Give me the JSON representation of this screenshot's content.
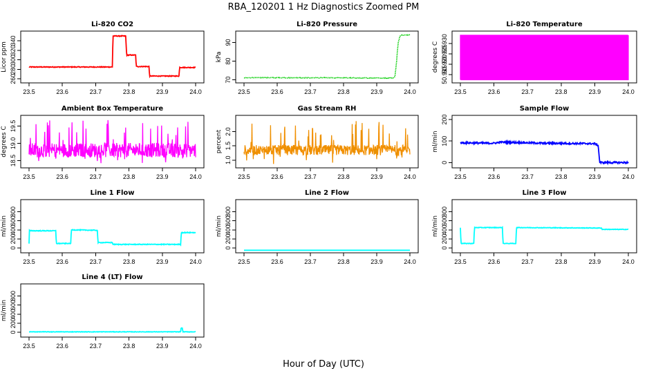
{
  "figure": {
    "title": "RBA_120201  1 Hz Diagnostics Zoomed PM",
    "xlabel": "Hour of Day (UTC)"
  },
  "chart_data": [
    {
      "id": "co2",
      "type": "line",
      "title": "Li-820 CO2",
      "ylabel": "Licor ppm",
      "xlim": [
        23.5,
        24.0
      ],
      "ylim": [
        256,
        356
      ],
      "xticks": [
        23.5,
        23.6,
        23.7,
        23.8,
        23.9,
        24.0
      ],
      "xtick_labels": [
        "23.5",
        "23.6",
        "23.7",
        "23.8",
        "23.9",
        "24.0"
      ],
      "yticks": [
        260,
        280,
        300,
        320,
        340
      ],
      "ytick_labels": [
        "260",
        "280",
        "300",
        "320",
        "340"
      ],
      "color": "#ff0000",
      "style": "step",
      "series": [
        {
          "name": "CO2",
          "x": [
            23.5,
            23.75,
            23.752,
            23.79,
            23.793,
            23.82,
            23.822,
            23.86,
            23.862,
            23.95,
            23.952,
            24.0
          ],
          "y": [
            285,
            285,
            350,
            350,
            310,
            310,
            286,
            286,
            266,
            266,
            284,
            284
          ]
        }
      ],
      "noise": 0.8
    },
    {
      "id": "pressure",
      "type": "line",
      "title": "Li-820 Pressure",
      "ylabel": "kPa",
      "xlim": [
        23.5,
        24.0
      ],
      "ylim": [
        69.5,
        95
      ],
      "xticks": [
        23.5,
        23.6,
        23.7,
        23.8,
        23.9,
        24.0
      ],
      "xtick_labels": [
        "23.5",
        "23.6",
        "23.7",
        "23.8",
        "23.9",
        "24.0"
      ],
      "yticks": [
        70,
        80,
        90
      ],
      "ytick_labels": [
        "70",
        "80",
        "90"
      ],
      "color": "#00cc00",
      "style": "points",
      "series": [
        {
          "name": "Pressure",
          "x": [
            23.5,
            23.95,
            23.955,
            23.96,
            23.962,
            23.965,
            23.97,
            23.975,
            24.0
          ],
          "y": [
            71.2,
            71.0,
            72,
            80,
            85,
            90,
            93.5,
            94,
            94
          ]
        }
      ],
      "noise": 0.15
    },
    {
      "id": "licor_temp",
      "type": "line",
      "title": "Li-820 Temperature",
      "ylabel": "degrees C",
      "xlim": [
        23.5,
        24.0
      ],
      "ylim": [
        50.912,
        50.935
      ],
      "xticks": [
        23.5,
        23.6,
        23.7,
        23.8,
        23.9,
        24.0
      ],
      "xtick_labels": [
        "23.5",
        "23.6",
        "23.7",
        "23.8",
        "23.9",
        "24.0"
      ],
      "yticks": [
        50.915,
        50.92,
        50.925,
        50.93
      ],
      "ytick_labels": [
        "50.915",
        "50.920",
        "50.925",
        "50.930"
      ],
      "color": "#ff00ff",
      "style": "switching",
      "series": [
        {
          "name": "Temperature",
          "levels": [
            50.9125,
            50.934
          ]
        }
      ]
    },
    {
      "id": "box_temp",
      "type": "line",
      "title": "Ambient Box Temperature",
      "ylabel": "degrees C",
      "xlim": [
        23.5,
        24.0
      ],
      "ylim": [
        18.35,
        19.75
      ],
      "xticks": [
        23.5,
        23.6,
        23.7,
        23.8,
        23.9,
        24.0
      ],
      "xtick_labels": [
        "23.5",
        "23.6",
        "23.7",
        "23.8",
        "23.9",
        "24.0"
      ],
      "yticks": [
        18.5,
        19.0,
        19.5
      ],
      "ytick_labels": [
        "18.5",
        "19.0",
        "19.5"
      ],
      "color": "#ff00ff",
      "style": "noisy",
      "series": [
        {
          "name": "Box Temp",
          "mean": 18.8,
          "spread": 0.35,
          "spike_max": 19.7,
          "spike_min": 18.4
        }
      ]
    },
    {
      "id": "gas_rh",
      "type": "line",
      "title": "Gas Stream RH",
      "ylabel": "percent",
      "xlim": [
        23.5,
        24.0
      ],
      "ylim": [
        0.8,
        2.5
      ],
      "xticks": [
        23.5,
        23.6,
        23.7,
        23.8,
        23.9,
        24.0
      ],
      "xtick_labels": [
        "23.5",
        "23.6",
        "23.7",
        "23.8",
        "23.9",
        "24.0"
      ],
      "yticks": [
        1.0,
        1.5,
        2.0
      ],
      "ytick_labels": [
        "1.0",
        "1.5",
        "2.0"
      ],
      "color": "#ff8c00",
      "color2": "#cc9900",
      "style": "noisy",
      "series": [
        {
          "name": "RH",
          "mean": 1.35,
          "spread": 0.3,
          "spike_max": 2.4,
          "spike_min": 0.85
        }
      ]
    },
    {
      "id": "sample_flow",
      "type": "line",
      "title": "Sample Flow",
      "ylabel": "ml/min",
      "xlim": [
        23.5,
        24.0
      ],
      "ylim": [
        -15,
        210
      ],
      "xticks": [
        23.5,
        23.6,
        23.7,
        23.8,
        23.9,
        24.0
      ],
      "xtick_labels": [
        "23.5",
        "23.6",
        "23.7",
        "23.8",
        "23.9",
        "24.0"
      ],
      "yticks": [
        0,
        100,
        200
      ],
      "ytick_labels": [
        "0",
        "100",
        "200"
      ],
      "color": "#0000ff",
      "style": "step",
      "series": [
        {
          "name": "Sample Flow",
          "x": [
            23.5,
            23.6,
            23.62,
            23.7,
            23.75,
            23.9,
            23.91,
            23.915,
            24.0
          ],
          "y": [
            92,
            90,
            95,
            92,
            90,
            88,
            80,
            0,
            0
          ]
        }
      ],
      "noise": 4
    },
    {
      "id": "line1",
      "type": "line",
      "title": "Line 1 Flow",
      "ylabel": "ml/min",
      "xlim": [
        23.5,
        24.0
      ],
      "ylim": [
        -60,
        1020
      ],
      "xticks": [
        23.5,
        23.6,
        23.7,
        23.8,
        23.9,
        24.0
      ],
      "xtick_labels": [
        "23.5",
        "23.6",
        "23.7",
        "23.8",
        "23.9",
        "24.0"
      ],
      "yticks": [
        0,
        200,
        400,
        600,
        800
      ],
      "ytick_labels": [
        "0",
        "200",
        "400",
        "600",
        "800"
      ],
      "color": "#00ffff",
      "style": "step",
      "series": [
        {
          "name": "Line 1",
          "x": [
            23.5,
            23.5,
            23.502,
            23.58,
            23.582,
            23.625,
            23.627,
            23.705,
            23.707,
            23.75,
            23.752,
            23.955,
            23.957,
            24.0
          ],
          "y": [
            100,
            400,
            380,
            380,
            100,
            100,
            400,
            390,
            120,
            120,
            80,
            80,
            340,
            340
          ]
        }
      ],
      "noise": 8
    },
    {
      "id": "line2",
      "type": "line",
      "title": "Line 2 Flow",
      "ylabel": "ml/min",
      "xlim": [
        23.5,
        24.0
      ],
      "ylim": [
        -60,
        1020
      ],
      "xticks": [
        23.5,
        23.6,
        23.7,
        23.8,
        23.9,
        24.0
      ],
      "xtick_labels": [
        "23.5",
        "23.6",
        "23.7",
        "23.8",
        "23.9",
        "24.0"
      ],
      "yticks": [
        0,
        200,
        400,
        600,
        800
      ],
      "ytick_labels": [
        "0",
        "200",
        "400",
        "600",
        "800"
      ],
      "color": "#00ffff",
      "style": "step",
      "series": [
        {
          "name": "Line 2",
          "x": [
            23.5,
            24.0
          ],
          "y": [
            -50,
            -50
          ]
        }
      ],
      "noise": 0
    },
    {
      "id": "line3",
      "type": "line",
      "title": "Line 3 Flow",
      "ylabel": "ml/min",
      "xlim": [
        23.5,
        24.0
      ],
      "ylim": [
        -60,
        1020
      ],
      "xticks": [
        23.5,
        23.6,
        23.7,
        23.8,
        23.9,
        24.0
      ],
      "xtick_labels": [
        "23.5",
        "23.6",
        "23.7",
        "23.8",
        "23.9",
        "24.0"
      ],
      "yticks": [
        0,
        200,
        400,
        600,
        800
      ],
      "ytick_labels": [
        "0",
        "200",
        "400",
        "600",
        "800"
      ],
      "color": "#00ffff",
      "style": "step",
      "series": [
        {
          "name": "Line 3",
          "x": [
            23.5,
            23.5,
            23.502,
            23.54,
            23.542,
            23.625,
            23.627,
            23.665,
            23.667,
            23.92,
            23.922,
            24.0
          ],
          "y": [
            450,
            450,
            100,
            100,
            450,
            450,
            100,
            100,
            450,
            440,
            410,
            410
          ]
        }
      ],
      "noise": 6
    },
    {
      "id": "line4",
      "type": "line",
      "title": "Line 4 (LT) Flow",
      "ylabel": "ml/min",
      "xlim": [
        23.5,
        24.0
      ],
      "ylim": [
        -60,
        1020
      ],
      "xticks": [
        23.5,
        23.6,
        23.7,
        23.8,
        23.9,
        24.0
      ],
      "xtick_labels": [
        "23.5",
        "23.6",
        "23.7",
        "23.8",
        "23.9",
        "24.0"
      ],
      "yticks": [
        0,
        200,
        400,
        600,
        800
      ],
      "ytick_labels": [
        "0",
        "200",
        "400",
        "600",
        "800"
      ],
      "color": "#00ffff",
      "style": "step",
      "series": [
        {
          "name": "Line 4",
          "x": [
            23.5,
            23.955,
            23.956,
            23.96,
            23.962,
            24.0
          ],
          "y": [
            10,
            10,
            90,
            90,
            10,
            10
          ]
        }
      ],
      "noise": 5
    }
  ]
}
